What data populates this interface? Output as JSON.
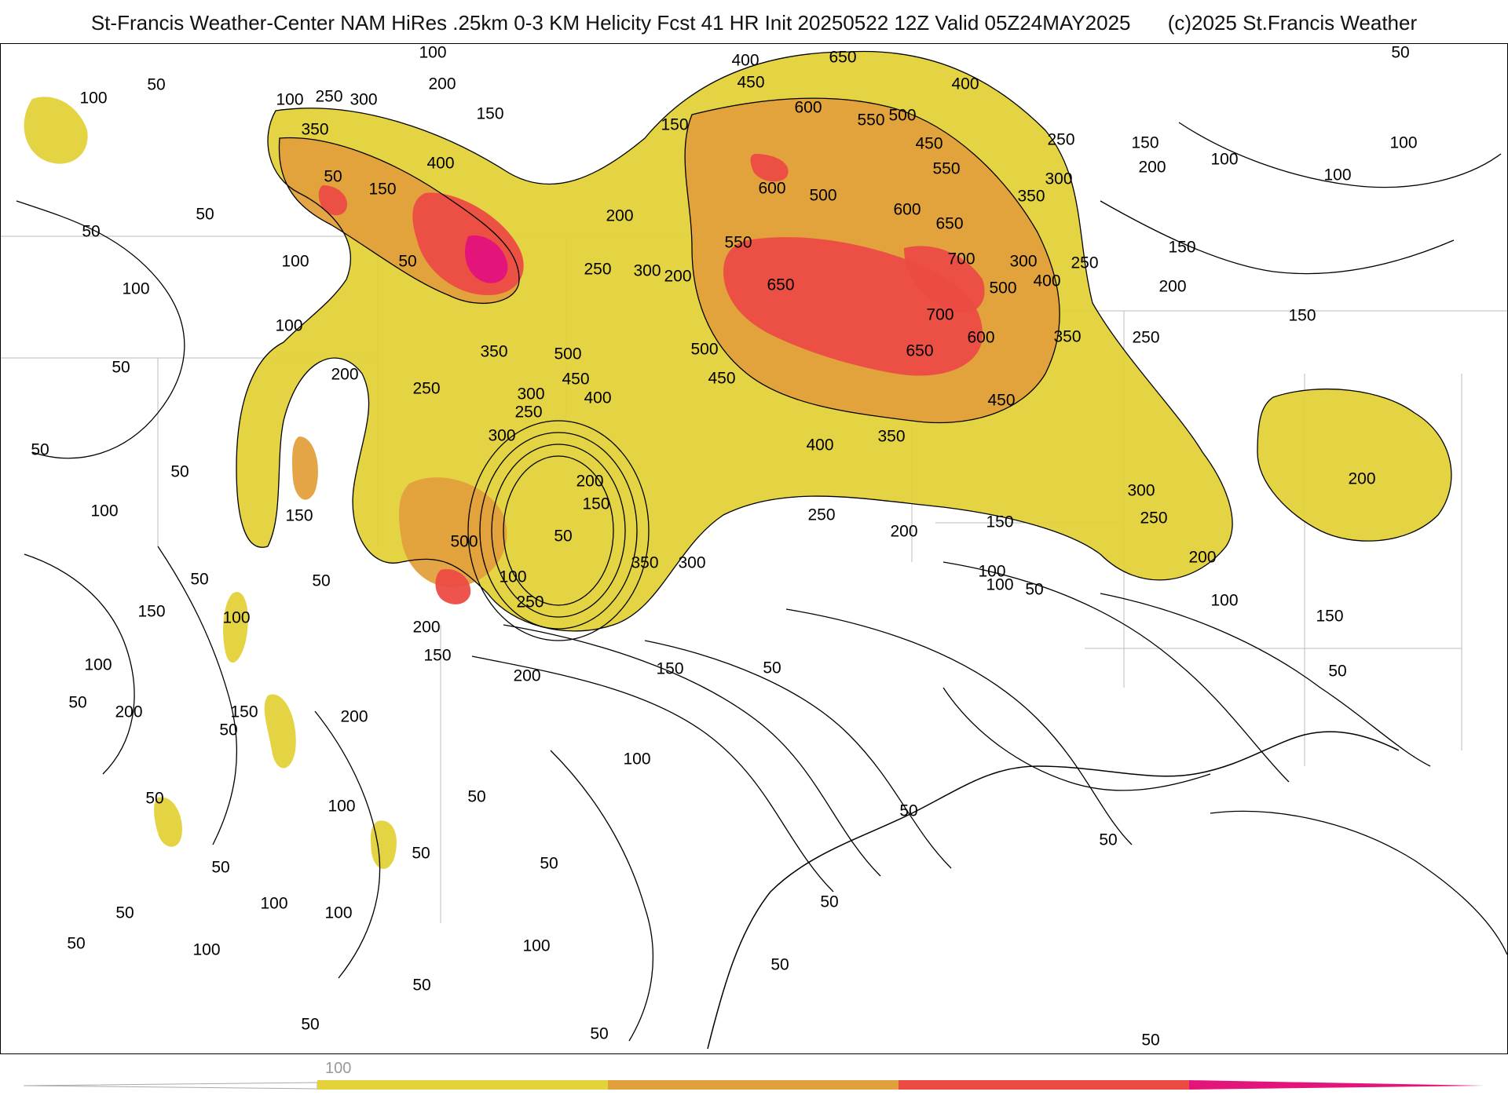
{
  "header": {
    "title": "St-Francis Weather-Center NAM HiRes .25km 0-3 KM Helicity Fcst 41 HR Init 20250522 12Z  Valid 05Z24MAY2025",
    "copyright": "(c)2025 St.Francis Weather"
  },
  "colors": {
    "band_100_200": "#e3d23a",
    "band_200_300": "#e1a03c",
    "band_300_400": "#ec4b43",
    "band_400_plus": "#e4157a",
    "contour": "#000000",
    "borders": "#bbbbbb"
  },
  "legend": {
    "tick_label": "100",
    "segments": [
      {
        "name": "below-100",
        "color": "#ffffff"
      },
      {
        "name": "100-200",
        "color": "#e3d23a"
      },
      {
        "name": "200-300",
        "color": "#e1a03c"
      },
      {
        "name": "300-400",
        "color": "#ec4b43"
      },
      {
        "name": "400-plus",
        "color": "#e4157a"
      }
    ]
  },
  "contour_labels": [
    "50",
    "100",
    "150",
    "200",
    "250",
    "300",
    "350",
    "400",
    "450",
    "500",
    "550",
    "600",
    "650",
    "700"
  ]
}
